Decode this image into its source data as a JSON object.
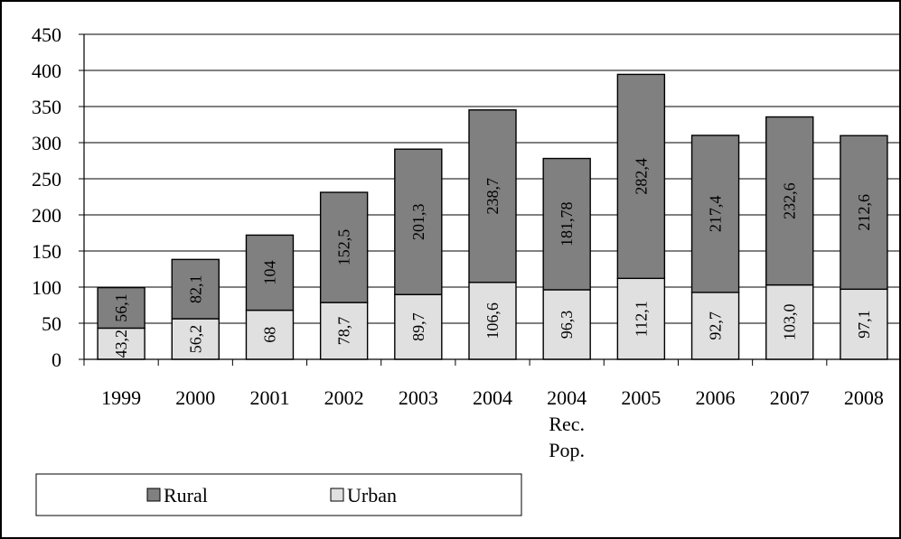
{
  "chart_data": {
    "type": "bar",
    "stacked": true,
    "title": "",
    "xlabel": "",
    "ylabel": "",
    "ylim": [
      0,
      450
    ],
    "yticks": [
      0,
      50,
      100,
      150,
      200,
      250,
      300,
      350,
      400,
      450
    ],
    "grid": true,
    "legend_position": "bottom-left",
    "categories": [
      [
        "1999"
      ],
      [
        "2000"
      ],
      [
        "2001"
      ],
      [
        "2002"
      ],
      [
        "2003"
      ],
      [
        "2004"
      ],
      [
        "2004",
        "Rec.",
        "Pop."
      ],
      [
        "2005"
      ],
      [
        "2006"
      ],
      [
        "2007"
      ],
      [
        "2008"
      ]
    ],
    "series": [
      {
        "name": "Urban",
        "color": "#e0e0e0",
        "values": [
          43.2,
          56.2,
          68,
          78.7,
          89.7,
          106.6,
          96.3,
          112.1,
          92.7,
          103.0,
          97.1
        ],
        "labels": [
          "43,2",
          "56,2",
          "68",
          "78,7",
          "89,7",
          "106,6",
          "96,3",
          "112,1",
          "92,7",
          "103,0",
          "97,1"
        ]
      },
      {
        "name": "Rural",
        "color": "#808080",
        "values": [
          56.1,
          82.1,
          104,
          152.5,
          201.3,
          238.7,
          181.78,
          282.4,
          217.4,
          232.6,
          212.6
        ],
        "labels": [
          "56,1",
          "82,1",
          "104",
          "152,5",
          "201,3",
          "238,7",
          "181,78",
          "282,4",
          "217,4",
          "232,6",
          "212,6"
        ]
      }
    ],
    "legend_order": [
      "Rural",
      "Urban"
    ]
  }
}
